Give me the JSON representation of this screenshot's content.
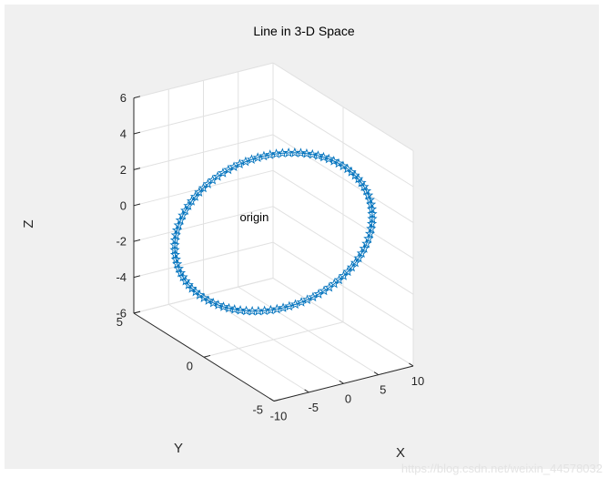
{
  "chart_data": {
    "type": "line3d",
    "title": "Line in 3-D Space",
    "xlabel": "X",
    "ylabel": "Y",
    "zlabel": "Z",
    "xlim": [
      -10,
      10
    ],
    "ylim": [
      -5,
      5
    ],
    "zlim": [
      -6,
      6
    ],
    "xticks": [
      -10,
      -5,
      0,
      5,
      10
    ],
    "yticks": [
      -5,
      0,
      5
    ],
    "zticks": [
      -6,
      -4,
      -2,
      0,
      2,
      4,
      6
    ],
    "grid": true,
    "marker": "pentagram",
    "series": [
      {
        "curve": "ellipse",
        "points": 100,
        "x_amplitude": 10,
        "y_amplitude": 5,
        "z_amplitude": 2.7,
        "color": "#0072bd"
      }
    ],
    "annotations": [
      {
        "text": "origin",
        "x": 0,
        "y": 0,
        "z": 0
      }
    ]
  },
  "colors": {
    "figure_background": "#f0f0f0",
    "axes_background": "#ffffff",
    "grid": "#e1e1e1",
    "axis": "#262626",
    "series": "#0072bd"
  },
  "watermark": "https://blog.csdn.net/weixin_44578032"
}
